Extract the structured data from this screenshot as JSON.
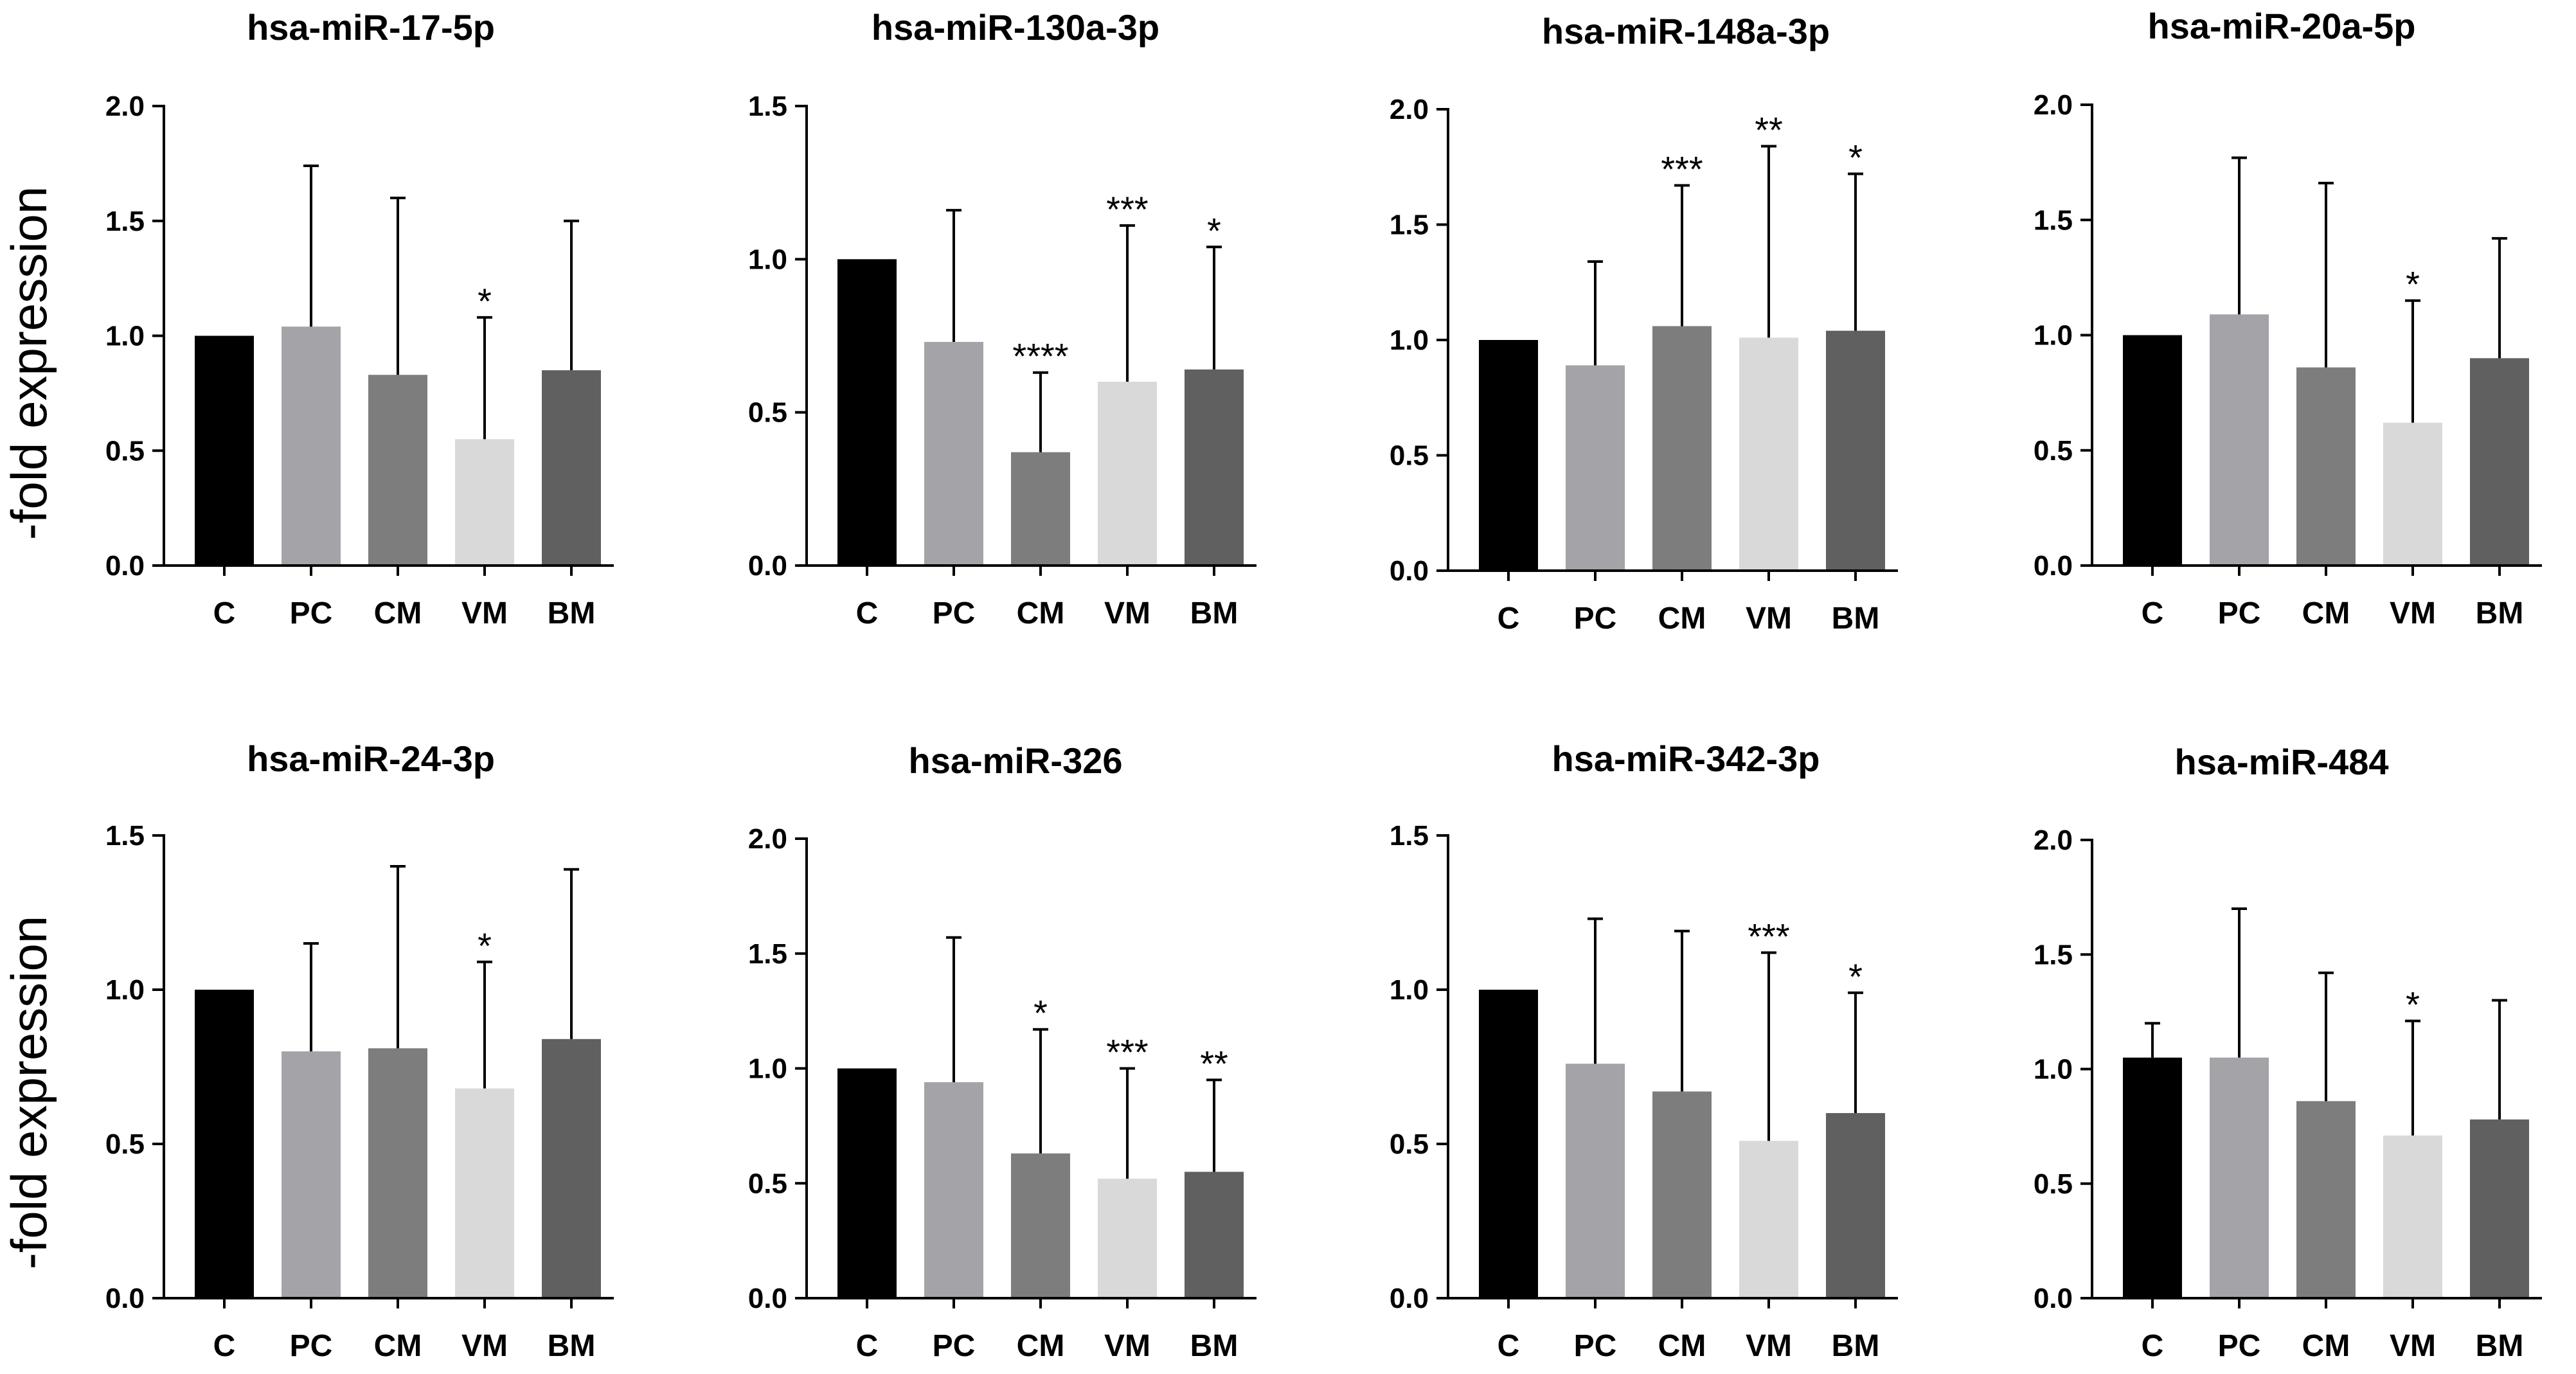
{
  "figure": {
    "ylabel": "-fold expression"
  },
  "chart_data": [
    {
      "type": "bar",
      "title": "hsa-miR-17-5p",
      "categories": [
        "C",
        "PC",
        "CM",
        "VM",
        "BM"
      ],
      "values": [
        1.0,
        1.04,
        0.83,
        0.55,
        0.85
      ],
      "error_upper": [
        null,
        1.74,
        1.6,
        1.08,
        1.5
      ],
      "significance": [
        "",
        "",
        "",
        "*",
        ""
      ],
      "colors": [
        "#000000",
        "#a3a3a8",
        "#7d7d7d",
        "#d9d9d9",
        "#606060"
      ],
      "ylim": [
        0,
        2.0
      ],
      "yticks": [
        "0.0",
        "0.5",
        "1.0",
        "1.5",
        "2.0"
      ],
      "ylabel": "-fold expression",
      "xlabel": ""
    },
    {
      "type": "bar",
      "title": "hsa-miR-130a-3p",
      "categories": [
        "C",
        "PC",
        "CM",
        "VM",
        "BM"
      ],
      "values": [
        1.0,
        0.73,
        0.37,
        0.6,
        0.64
      ],
      "error_upper": [
        null,
        1.16,
        0.63,
        1.11,
        1.04
      ],
      "significance": [
        "",
        "",
        "****",
        "***",
        "*"
      ],
      "colors": [
        "#000000",
        "#a3a3a8",
        "#7d7d7d",
        "#d9d9d9",
        "#606060"
      ],
      "ylim": [
        0,
        1.5
      ],
      "yticks": [
        "0.0",
        "0.5",
        "1.0",
        "1.5"
      ],
      "ylabel": "",
      "xlabel": ""
    },
    {
      "type": "bar",
      "title": "hsa-miR-148a-3p",
      "categories": [
        "C",
        "PC",
        "CM",
        "VM",
        "BM"
      ],
      "values": [
        1.0,
        0.89,
        1.06,
        1.01,
        1.04
      ],
      "error_upper": [
        null,
        1.34,
        1.67,
        1.84,
        1.72
      ],
      "significance": [
        "",
        "",
        "***",
        "**",
        "*"
      ],
      "colors": [
        "#000000",
        "#a3a3a8",
        "#7d7d7d",
        "#d9d9d9",
        "#606060"
      ],
      "ylim": [
        0,
        2.0
      ],
      "yticks": [
        "0.0",
        "0.5",
        "1.0",
        "1.5",
        "2.0"
      ],
      "ylabel": "",
      "xlabel": ""
    },
    {
      "type": "bar",
      "title": "hsa-miR-20a-5p",
      "categories": [
        "C",
        "PC",
        "CM",
        "VM",
        "BM"
      ],
      "values": [
        1.0,
        1.09,
        0.86,
        0.62,
        0.9
      ],
      "error_upper": [
        null,
        1.77,
        1.66,
        1.15,
        1.42
      ],
      "significance": [
        "",
        "",
        "",
        "*",
        ""
      ],
      "colors": [
        "#000000",
        "#a3a3a8",
        "#7d7d7d",
        "#d9d9d9",
        "#606060"
      ],
      "ylim": [
        0,
        2.0
      ],
      "yticks": [
        "0.0",
        "0.5",
        "1.0",
        "1.5",
        "2.0"
      ],
      "ylabel": "",
      "xlabel": ""
    },
    {
      "type": "bar",
      "title": "hsa-miR-24-3p",
      "categories": [
        "C",
        "PC",
        "CM",
        "VM",
        "BM"
      ],
      "values": [
        1.0,
        0.8,
        0.81,
        0.68,
        0.84
      ],
      "error_upper": [
        null,
        1.15,
        1.4,
        1.09,
        1.39
      ],
      "significance": [
        "",
        "",
        "",
        "*",
        ""
      ],
      "colors": [
        "#000000",
        "#a3a3a8",
        "#7d7d7d",
        "#d9d9d9",
        "#606060"
      ],
      "ylim": [
        0,
        1.5
      ],
      "yticks": [
        "0.0",
        "0.5",
        "1.0",
        "1.5"
      ],
      "ylabel": "-fold expression",
      "xlabel": ""
    },
    {
      "type": "bar",
      "title": "hsa-miR-326",
      "categories": [
        "C",
        "PC",
        "CM",
        "VM",
        "BM"
      ],
      "values": [
        1.0,
        0.94,
        0.63,
        0.52,
        0.55
      ],
      "error_upper": [
        null,
        1.57,
        1.17,
        1.0,
        0.95
      ],
      "significance": [
        "",
        "",
        "*",
        "***",
        "**"
      ],
      "colors": [
        "#000000",
        "#a3a3a8",
        "#7d7d7d",
        "#d9d9d9",
        "#606060"
      ],
      "ylim": [
        0,
        2.0
      ],
      "yticks": [
        "0.0",
        "0.5",
        "1.0",
        "1.5",
        "2.0"
      ],
      "ylabel": "",
      "xlabel": ""
    },
    {
      "type": "bar",
      "title": "hsa-miR-342-3p",
      "categories": [
        "C",
        "PC",
        "CM",
        "VM",
        "BM"
      ],
      "values": [
        1.0,
        0.76,
        0.67,
        0.51,
        0.6
      ],
      "error_upper": [
        null,
        1.23,
        1.19,
        1.12,
        0.99
      ],
      "significance": [
        "",
        "",
        "",
        "***",
        "*"
      ],
      "colors": [
        "#000000",
        "#a3a3a8",
        "#7d7d7d",
        "#d9d9d9",
        "#606060"
      ],
      "ylim": [
        0,
        1.5
      ],
      "yticks": [
        "0.0",
        "0.5",
        "1.0",
        "1.5"
      ],
      "ylabel": "",
      "xlabel": ""
    },
    {
      "type": "bar",
      "title": "hsa-miR-484",
      "categories": [
        "C",
        "PC",
        "CM",
        "VM",
        "BM"
      ],
      "values": [
        1.05,
        1.05,
        0.86,
        0.71,
        0.78
      ],
      "error_upper": [
        1.2,
        1.7,
        1.42,
        1.21,
        1.3
      ],
      "significance": [
        "",
        "",
        "",
        "*",
        ""
      ],
      "colors": [
        "#000000",
        "#a3a3a8",
        "#7d7d7d",
        "#d9d9d9",
        "#606060"
      ],
      "ylim": [
        0,
        2.0
      ],
      "yticks": [
        "0.0",
        "0.5",
        "1.0",
        "1.5",
        "2.0"
      ],
      "ylabel": "",
      "xlabel": ""
    }
  ]
}
